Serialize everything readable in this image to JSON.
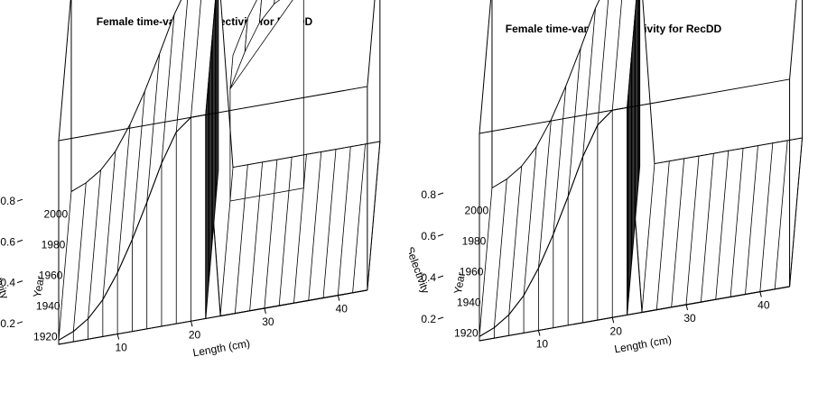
{
  "chart_data": [
    {
      "type": "surface",
      "title": "Female time-varying selectivity for RecDD",
      "xlabel": "Length (cm)",
      "ylabel": "Year",
      "zlabel": "Selectivity",
      "x_ticks": [
        "10",
        "20",
        "30",
        "40"
      ],
      "y_ticks": [
        "1920",
        "1940",
        "1960",
        "1980",
        "2000"
      ],
      "z_ticks": [
        "0.2",
        "0.4",
        "0.6",
        "0.8"
      ],
      "xlim": [
        2,
        44
      ],
      "ylim": [
        1915,
        2012
      ],
      "zlim": [
        0,
        1
      ],
      "selectivity_by_length": {
        "length": [
          2,
          4,
          6,
          8,
          10,
          12,
          14,
          16,
          18,
          20,
          22,
          24,
          26,
          28,
          30,
          32,
          34,
          36,
          38,
          40,
          42,
          44
        ],
        "selectivity": [
          0.02,
          0.05,
          0.1,
          0.18,
          0.3,
          0.45,
          0.62,
          0.8,
          0.94,
          1.0,
          1.0,
          0.0,
          0.0,
          0.0,
          0.0,
          0.0,
          0.0,
          0.0,
          0.0,
          0.0,
          0.0,
          0.0
        ]
      },
      "time_varying_block": {
        "years": [
          1990,
          2012
        ],
        "length": [
          24,
          26,
          28,
          30,
          32,
          34
        ],
        "selectivity": [
          0.55,
          0.72,
          0.85,
          0.93,
          0.97,
          1.0
        ]
      }
    },
    {
      "type": "surface",
      "title": "Female time-varying selectivity for RecDD",
      "xlabel": "Length (cm)",
      "ylabel": "Year",
      "zlabel": "Selectivity",
      "x_ticks": [
        "10",
        "20",
        "30",
        "40"
      ],
      "y_ticks": [
        "1920",
        "1940",
        "1960",
        "1980",
        "2000"
      ],
      "z_ticks": [
        "0.2",
        "0.4",
        "0.6",
        "0.8"
      ],
      "xlim": [
        2,
        44
      ],
      "ylim": [
        1915,
        2012
      ],
      "zlim": [
        0,
        1
      ],
      "selectivity_by_length": {
        "length": [
          2,
          4,
          6,
          8,
          10,
          12,
          14,
          16,
          18,
          20,
          22,
          24,
          26,
          28,
          30,
          32,
          34,
          36,
          38,
          40,
          42,
          44
        ],
        "selectivity": [
          0.02,
          0.05,
          0.1,
          0.18,
          0.3,
          0.45,
          0.62,
          0.8,
          0.94,
          1.0,
          1.0,
          0.0,
          0.0,
          0.0,
          0.0,
          0.0,
          0.0,
          0.0,
          0.0,
          0.0,
          0.0,
          0.0
        ]
      }
    }
  ]
}
